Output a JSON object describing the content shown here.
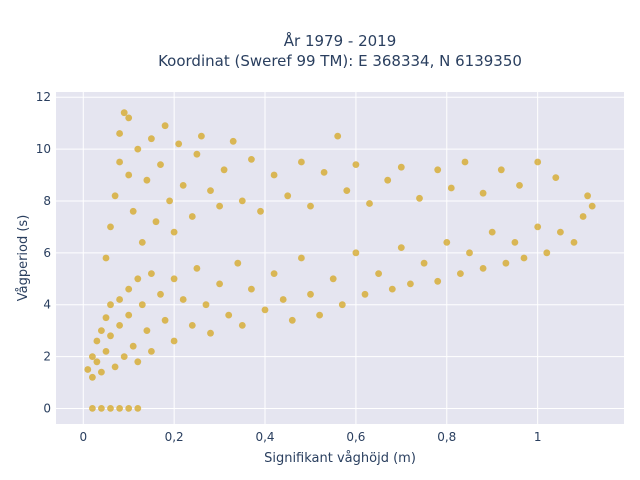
{
  "chart_data": {
    "type": "scatter",
    "title": [
      "År 1979 - 2019",
      "Koordinat (Sweref 99 TM): E 368334, N 6139350"
    ],
    "xlabel": "Signifikant våghöjd (m)",
    "ylabel": "Vågperiod (s)",
    "xlim": [
      -0.06,
      1.19
    ],
    "ylim": [
      -0.6,
      12.2
    ],
    "x_ticks": [
      0,
      0.2,
      0.4,
      0.6,
      0.8,
      1
    ],
    "x_tick_labels": [
      "0",
      "0,2",
      "0,4",
      "0,6",
      "0,8",
      "1"
    ],
    "y_ticks": [
      0,
      2,
      4,
      6,
      8,
      10,
      12
    ],
    "y_tick_labels": [
      "0",
      "2",
      "4",
      "6",
      "8",
      "10",
      "12"
    ],
    "grid": true,
    "background_color": "#e5e5f0",
    "marker_color": "#d4a520",
    "legend": null,
    "points": [
      [
        0.01,
        1.5
      ],
      [
        0.02,
        2.0
      ],
      [
        0.02,
        1.2
      ],
      [
        0.03,
        2.6
      ],
      [
        0.03,
        1.8
      ],
      [
        0.04,
        3.0
      ],
      [
        0.04,
        1.4
      ],
      [
        0.05,
        3.5
      ],
      [
        0.05,
        2.2
      ],
      [
        0.06,
        4.0
      ],
      [
        0.06,
        2.8
      ],
      [
        0.07,
        1.6
      ],
      [
        0.08,
        4.2
      ],
      [
        0.08,
        3.2
      ],
      [
        0.09,
        2.0
      ],
      [
        0.1,
        4.6
      ],
      [
        0.1,
        3.6
      ],
      [
        0.11,
        2.4
      ],
      [
        0.12,
        5.0
      ],
      [
        0.12,
        1.8
      ],
      [
        0.13,
        4.0
      ],
      [
        0.14,
        3.0
      ],
      [
        0.15,
        5.2
      ],
      [
        0.15,
        2.2
      ],
      [
        0.17,
        4.4
      ],
      [
        0.18,
        3.4
      ],
      [
        0.2,
        5.0
      ],
      [
        0.2,
        2.6
      ],
      [
        0.22,
        4.2
      ],
      [
        0.24,
        3.2
      ],
      [
        0.25,
        5.4
      ],
      [
        0.27,
        4.0
      ],
      [
        0.28,
        2.9
      ],
      [
        0.3,
        4.8
      ],
      [
        0.32,
        3.6
      ],
      [
        0.34,
        5.6
      ],
      [
        0.35,
        3.2
      ],
      [
        0.37,
        4.6
      ],
      [
        0.4,
        3.8
      ],
      [
        0.42,
        5.2
      ],
      [
        0.44,
        4.2
      ],
      [
        0.46,
        3.4
      ],
      [
        0.48,
        5.8
      ],
      [
        0.5,
        4.4
      ],
      [
        0.52,
        3.6
      ],
      [
        0.55,
        5.0
      ],
      [
        0.57,
        4.0
      ],
      [
        0.6,
        6.0
      ],
      [
        0.62,
        4.4
      ],
      [
        0.65,
        5.2
      ],
      [
        0.68,
        4.6
      ],
      [
        0.7,
        6.2
      ],
      [
        0.72,
        4.8
      ],
      [
        0.75,
        5.6
      ],
      [
        0.78,
        4.9
      ],
      [
        0.8,
        6.4
      ],
      [
        0.83,
        5.2
      ],
      [
        0.85,
        6.0
      ],
      [
        0.88,
        5.4
      ],
      [
        0.9,
        6.8
      ],
      [
        0.93,
        5.6
      ],
      [
        0.95,
        6.4
      ],
      [
        0.97,
        5.8
      ],
      [
        1.0,
        7.0
      ],
      [
        1.02,
        6.0
      ],
      [
        1.05,
        6.8
      ],
      [
        1.08,
        6.4
      ],
      [
        1.1,
        7.4
      ],
      [
        1.12,
        7.8
      ],
      [
        1.11,
        8.2
      ],
      [
        0.05,
        5.8
      ],
      [
        0.06,
        7.0
      ],
      [
        0.07,
        8.2
      ],
      [
        0.08,
        9.5
      ],
      [
        0.08,
        10.6
      ],
      [
        0.09,
        11.4
      ],
      [
        0.1,
        11.2
      ],
      [
        0.1,
        9.0
      ],
      [
        0.11,
        7.6
      ],
      [
        0.12,
        10.0
      ],
      [
        0.13,
        6.4
      ],
      [
        0.14,
        8.8
      ],
      [
        0.15,
        10.4
      ],
      [
        0.16,
        7.2
      ],
      [
        0.17,
        9.4
      ],
      [
        0.18,
        10.9
      ],
      [
        0.19,
        8.0
      ],
      [
        0.2,
        6.8
      ],
      [
        0.21,
        10.2
      ],
      [
        0.22,
        8.6
      ],
      [
        0.24,
        7.4
      ],
      [
        0.25,
        9.8
      ],
      [
        0.26,
        10.5
      ],
      [
        0.28,
        8.4
      ],
      [
        0.3,
        7.8
      ],
      [
        0.31,
        9.2
      ],
      [
        0.33,
        10.3
      ],
      [
        0.35,
        8.0
      ],
      [
        0.37,
        9.6
      ],
      [
        0.39,
        7.6
      ],
      [
        0.42,
        9.0
      ],
      [
        0.45,
        8.2
      ],
      [
        0.48,
        9.5
      ],
      [
        0.5,
        7.8
      ],
      [
        0.53,
        9.1
      ],
      [
        0.56,
        10.5
      ],
      [
        0.58,
        8.4
      ],
      [
        0.6,
        9.4
      ],
      [
        0.63,
        7.9
      ],
      [
        0.67,
        8.8
      ],
      [
        0.7,
        9.3
      ],
      [
        0.74,
        8.1
      ],
      [
        0.78,
        9.2
      ],
      [
        0.81,
        8.5
      ],
      [
        0.84,
        9.5
      ],
      [
        0.88,
        8.3
      ],
      [
        0.92,
        9.2
      ],
      [
        0.96,
        8.6
      ],
      [
        1.0,
        9.5
      ],
      [
        1.04,
        8.9
      ],
      [
        0.02,
        0.0
      ],
      [
        0.04,
        0.0
      ],
      [
        0.06,
        0.0
      ],
      [
        0.08,
        0.0
      ],
      [
        0.1,
        0.0
      ],
      [
        0.12,
        0.0
      ]
    ]
  }
}
